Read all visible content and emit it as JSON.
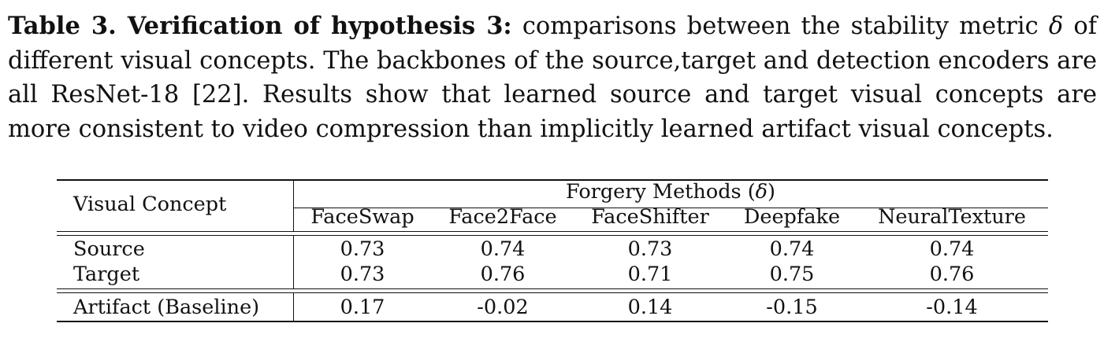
{
  "caption": {
    "label": "Table 3. Verification of hypothesis 3:",
    "text_1": " comparisons between the stability metric ",
    "delta_symbol": "δ",
    "text_2": " of different visual concepts. The backbones of the source,target and detection encoders are all ResNet-18 [22]. Results show that learned source and target visual concepts are more consistent to video compression than implicitly learned artifact visual concepts."
  },
  "table": {
    "row_header": "Visual Concept",
    "group_header_prefix": "Forgery Methods (",
    "group_header_symbol": "δ",
    "group_header_suffix": ")",
    "columns": [
      "FaceSwap",
      "Face2Face",
      "FaceShifter",
      "Deepfake",
      "NeuralTexture"
    ],
    "rows": [
      {
        "label": "Source",
        "values": [
          "0.73",
          "0.74",
          "0.73",
          "0.74",
          "0.74"
        ]
      },
      {
        "label": "Target",
        "values": [
          "0.73",
          "0.76",
          "0.71",
          "0.75",
          "0.76"
        ]
      },
      {
        "label": "Artifact (Baseline)",
        "values": [
          "0.17",
          "-0.02",
          "0.14",
          "-0.15",
          "-0.14"
        ]
      }
    ]
  }
}
